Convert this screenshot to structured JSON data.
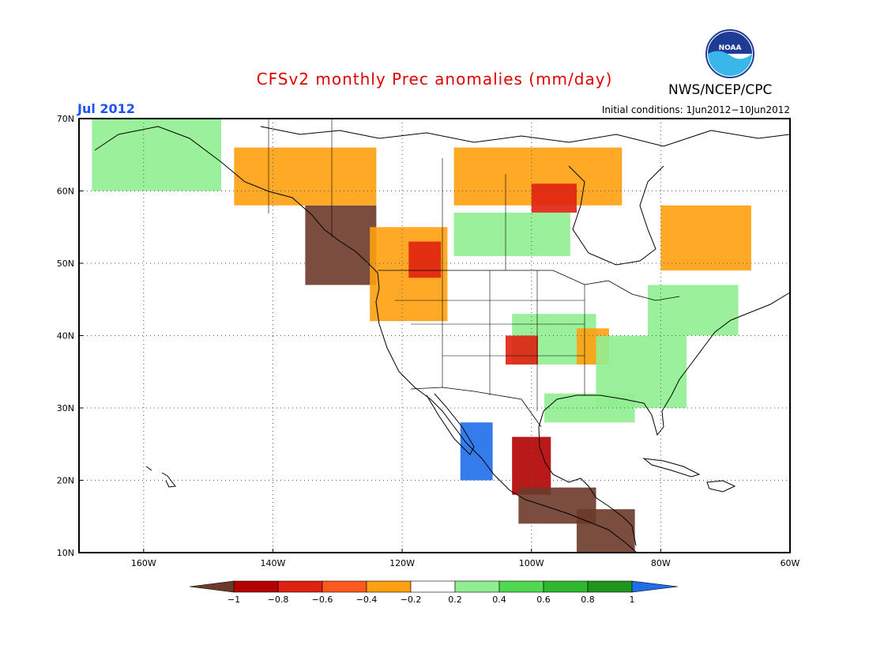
{
  "title": "CFSv2 monthly Prec anomalies (mm/day)",
  "organization": "NWS/NCEP/CPC",
  "logo_text": "NOAA",
  "month": "Jul 2012",
  "initial_conditions": "Initial conditions: 1Jun2012−10Jun2012",
  "map": {
    "lon_range": [
      -170,
      -60
    ],
    "lat_range": [
      10,
      70
    ],
    "lon_ticks": [
      {
        "value": -160,
        "label": "160W"
      },
      {
        "value": -140,
        "label": "140W"
      },
      {
        "value": -120,
        "label": "120W"
      },
      {
        "value": -100,
        "label": "100W"
      },
      {
        "value": -80,
        "label": "80W"
      },
      {
        "value": -60,
        "label": "60W"
      }
    ],
    "lat_ticks": [
      {
        "value": 70,
        "label": "70N"
      },
      {
        "value": 60,
        "label": "60N"
      },
      {
        "value": 50,
        "label": "50N"
      },
      {
        "value": 40,
        "label": "40N"
      },
      {
        "value": 30,
        "label": "30N"
      },
      {
        "value": 20,
        "label": "20N"
      },
      {
        "value": 10,
        "label": "10N"
      }
    ],
    "grid_lines": true,
    "anomaly_regions": [
      {
        "name": "pacific-northwest-coast",
        "category": -1,
        "lon": [
          -135,
          -124
        ],
        "lat": [
          47,
          58
        ]
      },
      {
        "name": "pacific-northwest-inland",
        "category": -0.4,
        "lon": [
          -125,
          -113
        ],
        "lat": [
          42,
          55
        ]
      },
      {
        "name": "british-columbia",
        "category": -0.6,
        "lon": [
          -119,
          -114
        ],
        "lat": [
          48,
          53
        ]
      },
      {
        "name": "yukon",
        "category": -0.4,
        "lon": [
          -146,
          -124
        ],
        "lat": [
          58,
          66
        ]
      },
      {
        "name": "alaska-north",
        "category": 0.4,
        "lon": [
          -168,
          -148
        ],
        "lat": [
          60,
          70
        ]
      },
      {
        "name": "northern-canada",
        "category": -0.4,
        "lon": [
          -112,
          -86
        ],
        "lat": [
          58,
          66
        ]
      },
      {
        "name": "hudson-bay-west",
        "category": -0.6,
        "lon": [
          -100,
          -93
        ],
        "lat": [
          57,
          61
        ]
      },
      {
        "name": "prairies",
        "category": 0.4,
        "lon": [
          -112,
          -94
        ],
        "lat": [
          51,
          57
        ]
      },
      {
        "name": "quebec",
        "category": -0.4,
        "lon": [
          -80,
          -66
        ],
        "lat": [
          49,
          58
        ]
      },
      {
        "name": "great-plains",
        "category": 0.4,
        "lon": [
          -103,
          -90
        ],
        "lat": [
          36,
          43
        ]
      },
      {
        "name": "kansas",
        "category": -0.6,
        "lon": [
          -104,
          -99
        ],
        "lat": [
          36,
          40
        ]
      },
      {
        "name": "mississippi-valley",
        "category": -0.4,
        "lon": [
          -93,
          -88
        ],
        "lat": [
          36,
          41
        ]
      },
      {
        "name": "southeast",
        "category": 0.4,
        "lon": [
          -90,
          -76
        ],
        "lat": [
          30,
          40
        ]
      },
      {
        "name": "northeast",
        "category": 0.4,
        "lon": [
          -82,
          -68
        ],
        "lat": [
          40,
          47
        ]
      },
      {
        "name": "gulf-coast",
        "category": 0.4,
        "lon": [
          -98,
          -84
        ],
        "lat": [
          28,
          32
        ]
      },
      {
        "name": "northwest-mexico",
        "category": 1,
        "lon": [
          -111,
          -106
        ],
        "lat": [
          20,
          28
        ]
      },
      {
        "name": "eastern-mexico",
        "category": -0.8,
        "lon": [
          -103,
          -97
        ],
        "lat": [
          18,
          26
        ]
      },
      {
        "name": "southern-mexico",
        "category": -1,
        "lon": [
          -102,
          -90
        ],
        "lat": [
          14,
          19
        ]
      },
      {
        "name": "central-america",
        "category": -1,
        "lon": [
          -93,
          -84
        ],
        "lat": [
          10,
          16
        ]
      }
    ]
  },
  "colorbar": {
    "labels": [
      "−1",
      "−0.8",
      "−0.6",
      "−0.4",
      "−0.2",
      "0.2",
      "0.4",
      "0.6",
      "0.8",
      "1"
    ],
    "colors": [
      "#6b3a2a",
      "#b30000",
      "#e02010",
      "#ff5a1e",
      "#ffa010",
      "#ffffff",
      "#90ee90",
      "#50d850",
      "#2fb82f",
      "#1e961e",
      "#1e6ee8"
    ]
  }
}
